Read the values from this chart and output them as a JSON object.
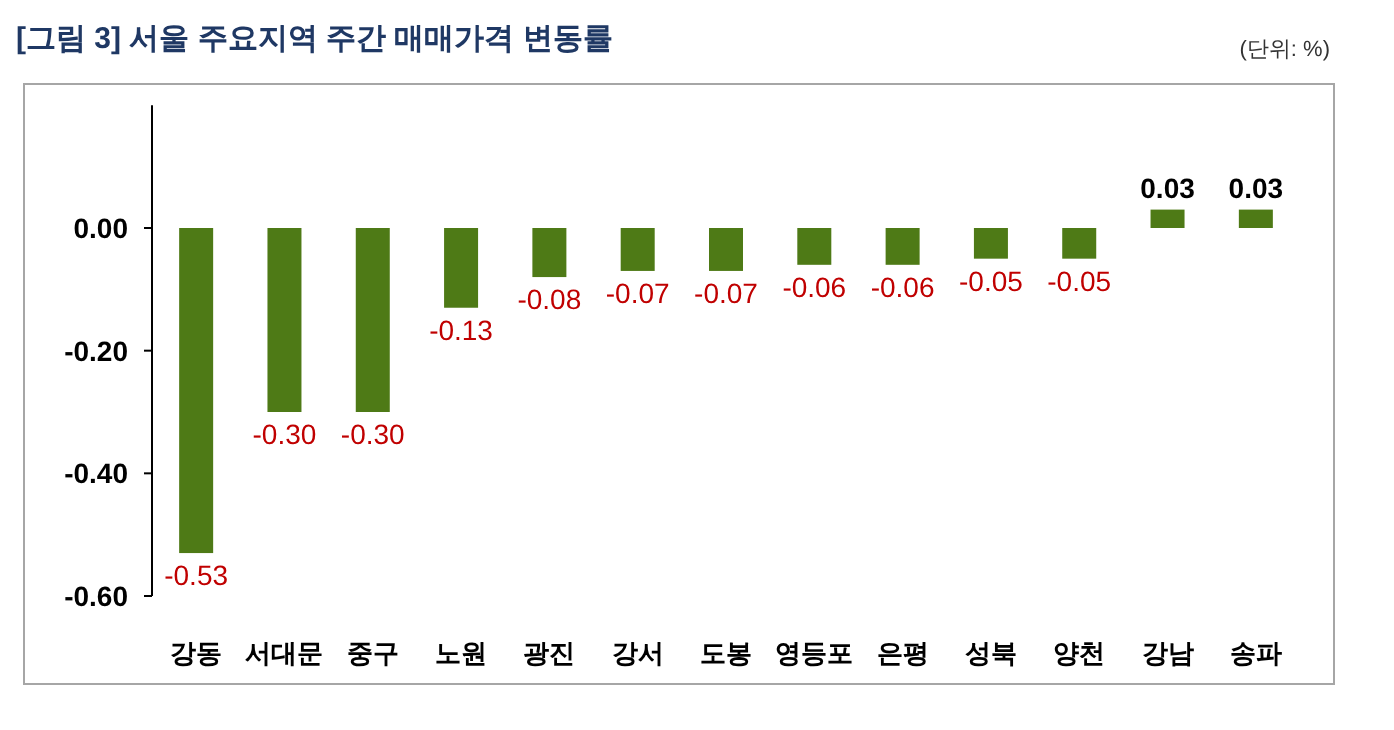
{
  "chart_data": {
    "type": "bar",
    "title": "[그림 3] 서울 주요지역 주간 매매가격 변동률",
    "annotations": [
      "(단위: %)"
    ],
    "categories": [
      "강동",
      "서대문",
      "중구",
      "노원",
      "광진",
      "강서",
      "도봉",
      "영등포",
      "은평",
      "성북",
      "양천",
      "강남",
      "송파"
    ],
    "values": [
      -0.53,
      -0.3,
      -0.3,
      -0.13,
      -0.08,
      -0.07,
      -0.07,
      -0.06,
      -0.06,
      -0.05,
      -0.05,
      0.03,
      0.03
    ],
    "value_labels": [
      "-0.53",
      "-0.30",
      "-0.30",
      "-0.13",
      "-0.08",
      "-0.07",
      "-0.07",
      "-0.06",
      "-0.06",
      "-0.05",
      "-0.05",
      "0.03",
      "0.03"
    ],
    "color": "#4e7a16",
    "ylim": [
      -0.6,
      0.2
    ],
    "yticks": [
      {
        "value": -0.6,
        "label": "-0.60"
      },
      {
        "value": -0.4,
        "label": "-0.40"
      },
      {
        "value": -0.2,
        "label": "-0.20"
      },
      {
        "value": 0,
        "label": "0.00"
      }
    ]
  }
}
